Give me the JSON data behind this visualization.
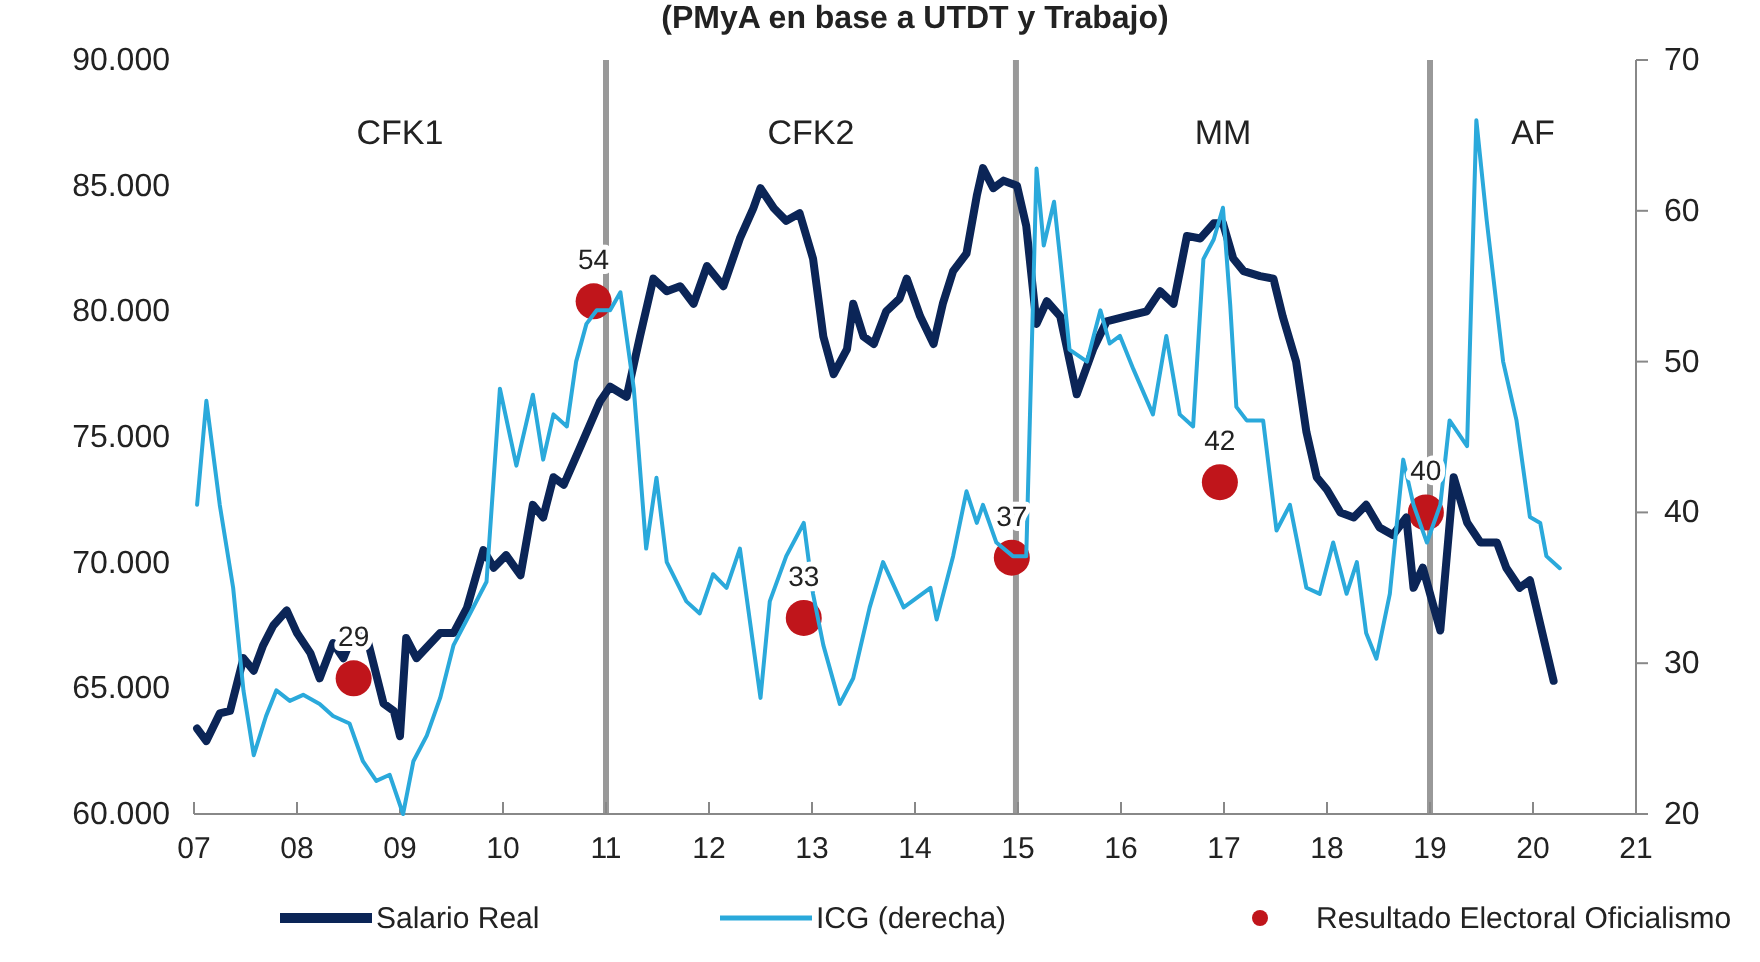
{
  "chart_data": {
    "type": "line",
    "subtitle": "(PMyA en base a UTDT y Trabajo)",
    "xlim": [
      7,
      21
    ],
    "xticks": [
      {
        "value": 7,
        "label": "07"
      },
      {
        "value": 8,
        "label": "08"
      },
      {
        "value": 9,
        "label": "09"
      },
      {
        "value": 10,
        "label": "10"
      },
      {
        "value": 11,
        "label": "11"
      },
      {
        "value": 12,
        "label": "12"
      },
      {
        "value": 13,
        "label": "13"
      },
      {
        "value": 14,
        "label": "14"
      },
      {
        "value": 15,
        "label": "15"
      },
      {
        "value": 16,
        "label": "16"
      },
      {
        "value": 17,
        "label": "17"
      },
      {
        "value": 18,
        "label": "18"
      },
      {
        "value": 19,
        "label": "19"
      },
      {
        "value": 20,
        "label": "20"
      },
      {
        "value": 21,
        "label": "21"
      }
    ],
    "ylim": [
      60000,
      90000
    ],
    "yticks": [
      {
        "value": 60000,
        "label": "60.000"
      },
      {
        "value": 65000,
        "label": "65.000"
      },
      {
        "value": 70000,
        "label": "70.000"
      },
      {
        "value": 75000,
        "label": "75.000"
      },
      {
        "value": 80000,
        "label": "80.000"
      },
      {
        "value": 85000,
        "label": "85.000"
      },
      {
        "value": 90000,
        "label": "90.000"
      }
    ],
    "y2lim": [
      20,
      70
    ],
    "y2ticks": [
      20,
      30,
      40,
      50,
      60,
      70
    ],
    "legend": "bottom",
    "ref_lines": [
      {
        "axis": "x",
        "value": 11,
        "color": "#999999"
      },
      {
        "axis": "x",
        "value": 14.98,
        "color": "#999999"
      },
      {
        "axis": "x",
        "value": 19,
        "color": "#999999"
      }
    ],
    "annotations": [
      "CFK1",
      "CFK2",
      "MM",
      "AF"
    ],
    "series": [
      {
        "name": "Salario Real",
        "color": "#0b2557",
        "x": [
          7.03,
          7.12,
          7.25,
          7.35,
          7.48,
          7.58,
          7.67,
          7.77,
          7.9,
          8.0,
          8.13,
          8.22,
          8.35,
          8.45,
          8.55,
          8.68,
          8.84,
          8.94,
          9.0,
          9.06,
          9.16,
          9.39,
          9.52,
          9.65,
          9.81,
          9.91,
          10.03,
          10.17,
          10.29,
          10.39,
          10.49,
          10.59,
          10.75,
          10.94,
          11.04,
          11.2,
          11.33,
          11.46,
          11.59,
          11.72,
          11.85,
          11.98,
          12.14,
          12.3,
          12.43,
          12.5,
          12.63,
          12.75,
          12.88,
          13.01,
          13.11,
          13.21,
          13.34,
          13.4,
          13.5,
          13.6,
          13.72,
          13.85,
          13.92,
          14.05,
          14.18,
          14.27,
          14.37,
          14.5,
          14.6,
          14.66,
          14.76,
          14.86,
          14.99,
          15.08,
          15.18,
          15.28,
          15.41,
          15.57,
          15.73,
          15.86,
          16.05,
          16.25,
          16.38,
          16.51,
          16.64,
          16.77,
          16.9,
          16.99,
          17.09,
          17.19,
          17.35,
          17.48,
          17.57,
          17.7,
          17.8,
          17.9,
          18.0,
          18.13,
          18.26,
          18.38,
          18.51,
          18.64,
          18.77,
          18.84,
          18.93,
          19.1,
          19.23,
          19.36,
          19.49,
          19.65,
          19.74,
          19.87,
          19.97,
          20.2
        ],
        "values": [
          63400,
          62900,
          64000,
          64100,
          66200,
          65700,
          66700,
          67500,
          68100,
          67200,
          66400,
          65400,
          66800,
          66200,
          67200,
          67000,
          64400,
          64100,
          63100,
          67000,
          66200,
          67200,
          67200,
          68200,
          70500,
          69800,
          70300,
          69500,
          72300,
          71800,
          73400,
          73100,
          74600,
          76400,
          77000,
          76600,
          79000,
          81300,
          80800,
          81000,
          80300,
          81800,
          81000,
          82900,
          84100,
          84900,
          84100,
          83600,
          83900,
          82100,
          79000,
          77500,
          78500,
          80300,
          79000,
          78700,
          80000,
          80500,
          81300,
          79800,
          78700,
          80300,
          81600,
          82300,
          84600,
          85700,
          84900,
          85200,
          85000,
          83400,
          79500,
          80400,
          79800,
          76700,
          78500,
          79600,
          79800,
          80000,
          80800,
          80300,
          83000,
          82900,
          83500,
          83500,
          82100,
          81600,
          81400,
          81300,
          79800,
          78000,
          75200,
          73400,
          72900,
          72000,
          71800,
          72300,
          71400,
          71100,
          71800,
          69000,
          69800,
          67300,
          73400,
          71600,
          70800,
          70800,
          69800,
          69000,
          69300,
          65300
        ]
      },
      {
        "name": "ICG (derecha)",
        "axis": "y2",
        "color": "#2aa9db",
        "x": [
          7.03,
          7.12,
          7.25,
          7.38,
          7.48,
          7.58,
          7.7,
          7.8,
          7.93,
          8.06,
          8.22,
          8.35,
          8.51,
          8.64,
          8.77,
          8.9,
          9.03,
          9.13,
          9.26,
          9.39,
          9.52,
          9.65,
          9.84,
          9.97,
          10.13,
          10.29,
          10.39,
          10.49,
          10.62,
          10.71,
          10.81,
          10.91,
          11.04,
          11.14,
          11.27,
          11.39,
          11.49,
          11.59,
          11.78,
          11.91,
          12.04,
          12.17,
          12.3,
          12.5,
          12.59,
          12.75,
          12.92,
          13.01,
          13.11,
          13.27,
          13.4,
          13.56,
          13.69,
          13.89,
          14.15,
          14.21,
          14.37,
          14.5,
          14.6,
          14.66,
          14.79,
          14.95,
          15.08,
          15.18,
          15.25,
          15.35,
          15.41,
          15.5,
          15.67,
          15.8,
          15.89,
          15.99,
          16.12,
          16.31,
          16.44,
          16.57,
          16.7,
          16.8,
          16.9,
          16.99,
          17.06,
          17.12,
          17.22,
          17.38,
          17.51,
          17.64,
          17.8,
          17.93,
          18.06,
          18.19,
          18.29,
          18.38,
          18.48,
          18.61,
          18.74,
          18.84,
          18.97,
          19.1,
          19.19,
          19.36,
          19.45,
          19.55,
          19.71,
          19.84,
          19.97,
          20.07,
          20.13,
          20.26
        ],
        "values": [
          40.5,
          47.4,
          40.5,
          35,
          28.2,
          23.9,
          26.5,
          28.2,
          27.5,
          27.9,
          27.3,
          26.5,
          26,
          23.5,
          22.2,
          22.6,
          20,
          23.5,
          25.2,
          27.7,
          31.2,
          32.9,
          35.4,
          48.2,
          43.1,
          47.8,
          43.5,
          46.5,
          45.7,
          50,
          52.5,
          53.4,
          53.4,
          54.6,
          48.2,
          37.6,
          42.3,
          36.7,
          34.1,
          33.3,
          35.9,
          35,
          37.6,
          27.7,
          34.1,
          37.1,
          39.3,
          34.6,
          31.2,
          27.3,
          29,
          33.7,
          36.7,
          33.7,
          35,
          32.9,
          37.1,
          41.4,
          39.3,
          40.5,
          38,
          37.1,
          37.1,
          62.8,
          57.7,
          60.6,
          56.8,
          50.8,
          50,
          53.4,
          51.2,
          51.7,
          49.5,
          46.5,
          51.7,
          46.5,
          45.7,
          56.8,
          58.1,
          60.2,
          53.8,
          47,
          46.1,
          46.1,
          38.8,
          40.5,
          35,
          34.6,
          38,
          34.6,
          36.7,
          32,
          30.3,
          34.6,
          43.5,
          40.5,
          38,
          40.5,
          46.1,
          44.4,
          66,
          59.4,
          50,
          46.1,
          39.7,
          39.3,
          37.1,
          36.3
        ]
      },
      {
        "name": "Resultado Electoral Oficialismo",
        "type": "scatter",
        "axis": "y2",
        "marker": "circle",
        "color": "#c0151b",
        "data_labels": true,
        "x": [
          8.55,
          10.88,
          12.92,
          14.94,
          16.96,
          18.96
        ],
        "values": [
          29,
          54,
          33,
          37,
          42,
          40
        ]
      }
    ]
  }
}
